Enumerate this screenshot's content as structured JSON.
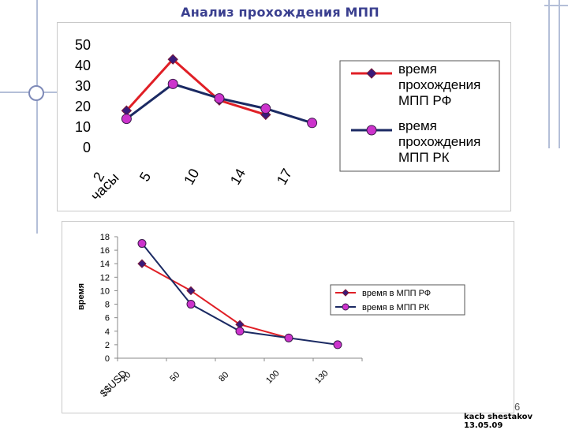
{
  "page": {
    "title": "Анализ прохождения МПП",
    "slide_number": "6",
    "footer": "kacb shestakov 13.05.09"
  },
  "colors": {
    "series_rf": "#e01f26",
    "series_rk": "#1b2a63",
    "marker_rf": "#3a1a7a",
    "marker_rk": "#cc33cc",
    "title": "#3a3f8f",
    "decor": "#b4bfd8"
  },
  "chart_data": [
    {
      "type": "line",
      "title": "",
      "xlabel": "часы",
      "ylabel": "",
      "categories": [
        "2",
        "5",
        "10",
        "14",
        "17"
      ],
      "ylim": [
        0,
        50
      ],
      "yticks": [
        "50",
        "40",
        "30",
        "20",
        "10",
        "0"
      ],
      "grid": false,
      "legend": "right",
      "series": [
        {
          "name": "время прохождения МПП РФ",
          "name_lines": [
            "время",
            "прохождения",
            "МПП РФ"
          ],
          "values": [
            18,
            43,
            23,
            16,
            null
          ]
        },
        {
          "name": "время прохождения МПП РК",
          "name_lines": [
            "время",
            "прохождения",
            "МПП РК"
          ],
          "values": [
            14,
            31,
            24,
            19,
            12
          ]
        }
      ]
    },
    {
      "type": "line",
      "title": "",
      "xlabel": "$$USD",
      "ylabel": "время",
      "categories": [
        "20",
        "50",
        "80",
        "100",
        "130"
      ],
      "ylim": [
        0,
        18
      ],
      "yticks": [
        "18",
        "16",
        "14",
        "12",
        "10",
        "8",
        "6",
        "4",
        "2",
        "0"
      ],
      "grid": false,
      "legend": "right",
      "series": [
        {
          "name": "время в МПП РФ",
          "values": [
            14,
            10,
            5,
            3,
            null
          ]
        },
        {
          "name": "время в МПП РК",
          "values": [
            17,
            8,
            4,
            3,
            2
          ]
        }
      ]
    }
  ]
}
